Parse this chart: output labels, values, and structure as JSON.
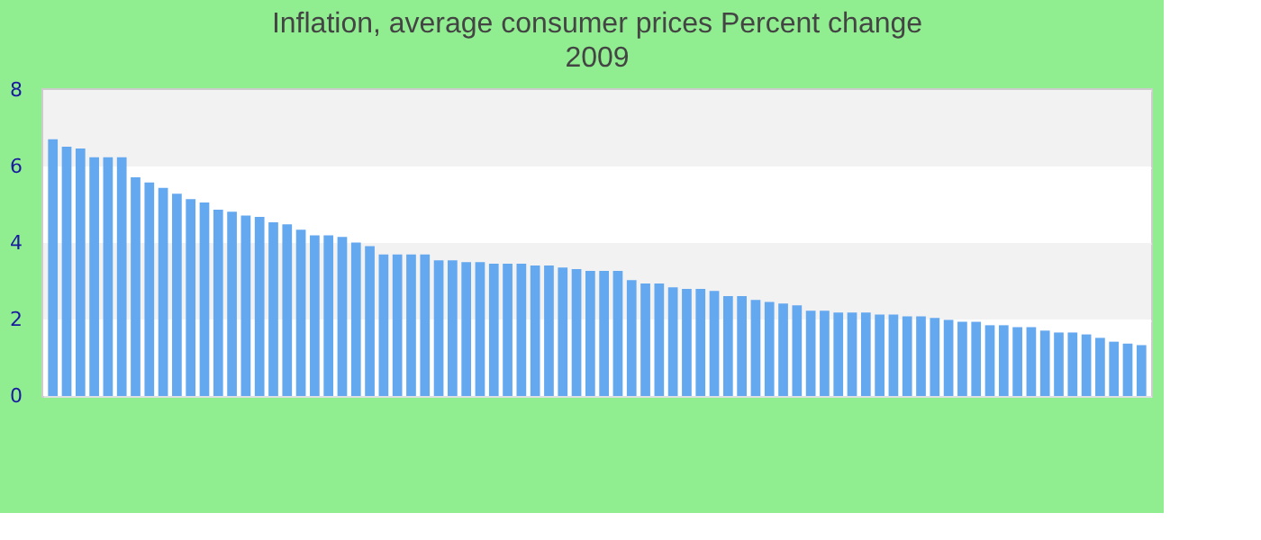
{
  "chart_data": {
    "type": "bar",
    "title": "Inflation, average consumer prices  Percent change",
    "subtitle": "2009",
    "categories": [
      null,
      null,
      null,
      null,
      null,
      null,
      null,
      null,
      null,
      null,
      null,
      null,
      null,
      null,
      null,
      null,
      null,
      null,
      null,
      null,
      null,
      null,
      null,
      null,
      null,
      null,
      null,
      null,
      null,
      null,
      null,
      null,
      null,
      null,
      null,
      null,
      null,
      null,
      null,
      null,
      null,
      null,
      null,
      null,
      null,
      null,
      null,
      null,
      null,
      null,
      null,
      null,
      null,
      null,
      null,
      null,
      null,
      null,
      null,
      null,
      null,
      null,
      null,
      null,
      null,
      null,
      null,
      null,
      null,
      null,
      null,
      null,
      null,
      null,
      null,
      null,
      null,
      null,
      null,
      null
    ],
    "values": [
      6.71,
      6.52,
      6.47,
      6.24,
      6.24,
      6.24,
      5.72,
      5.58,
      5.44,
      5.29,
      5.15,
      5.06,
      4.87,
      4.82,
      4.72,
      4.68,
      4.54,
      4.49,
      4.35,
      4.2,
      4.2,
      4.16,
      4.01,
      3.92,
      3.7,
      3.7,
      3.7,
      3.7,
      3.55,
      3.55,
      3.5,
      3.5,
      3.46,
      3.46,
      3.46,
      3.41,
      3.41,
      3.36,
      3.32,
      3.27,
      3.27,
      3.27,
      3.03,
      2.94,
      2.94,
      2.84,
      2.8,
      2.8,
      2.75,
      2.61,
      2.61,
      2.51,
      2.46,
      2.42,
      2.37,
      2.23,
      2.23,
      2.18,
      2.18,
      2.18,
      2.13,
      2.13,
      2.08,
      2.08,
      2.04,
      1.99,
      1.94,
      1.94,
      1.85,
      1.85,
      1.8,
      1.8,
      1.71,
      1.66,
      1.66,
      1.61,
      1.52,
      1.42,
      1.37,
      1.33
    ],
    "color": "#64a8f0",
    "ylim": [
      0,
      8
    ],
    "yticks": [
      0,
      2,
      4,
      6,
      8
    ],
    "grid": true
  }
}
